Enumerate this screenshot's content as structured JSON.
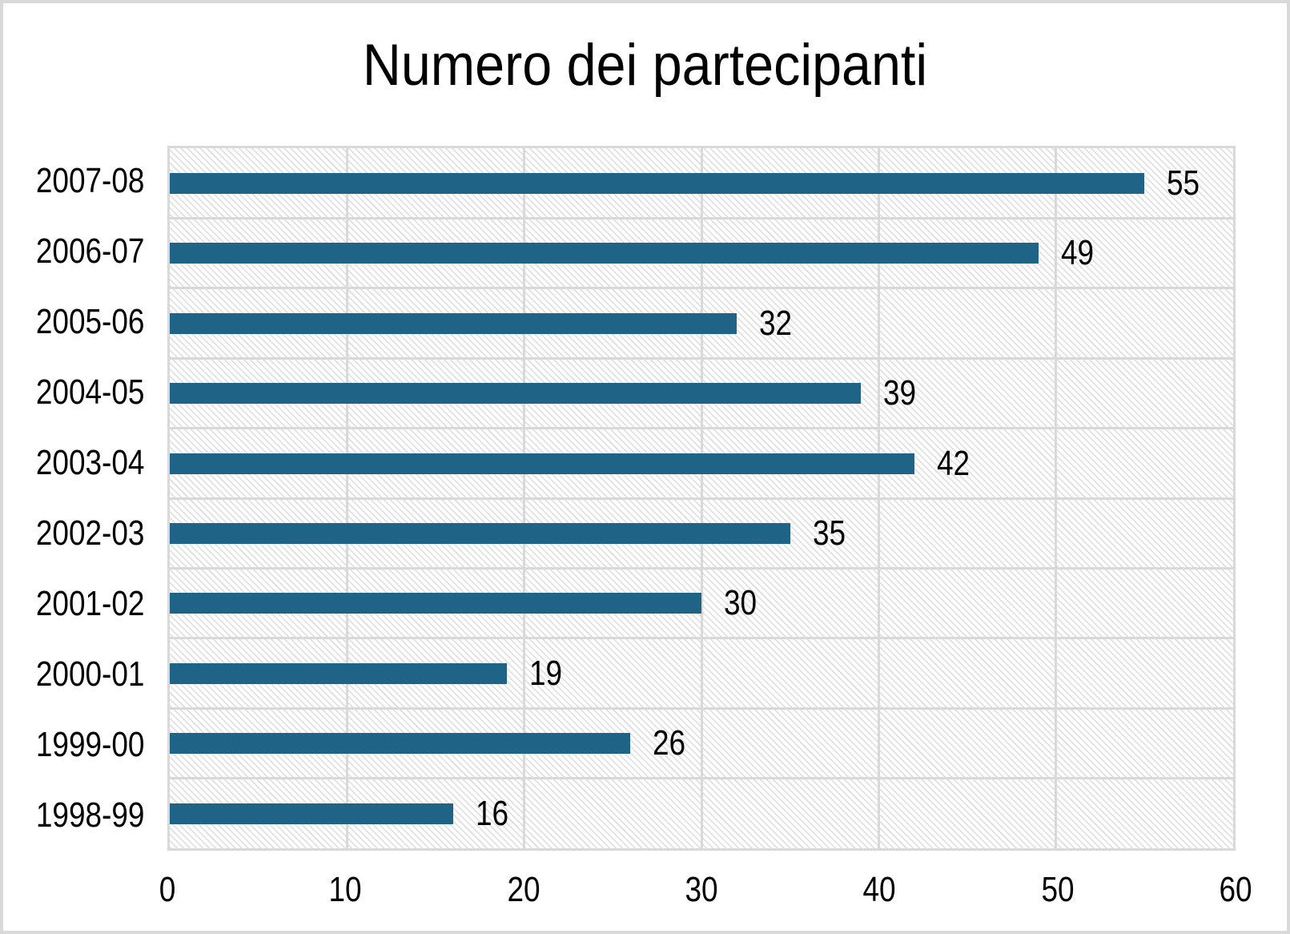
{
  "chart_data": {
    "type": "bar",
    "orientation": "horizontal",
    "title": "Numero dei partecipanti",
    "categories": [
      "2007-08",
      "2006-07",
      "2005-06",
      "2004-05",
      "2003-04",
      "2002-03",
      "2001-02",
      "2000-01",
      "1999-00",
      "1998-99"
    ],
    "values": [
      55,
      49,
      32,
      39,
      42,
      35,
      30,
      19,
      26,
      16
    ],
    "xlabel": "",
    "ylabel": "",
    "xlim": [
      0,
      60
    ],
    "x_ticks": [
      0,
      10,
      20,
      30,
      40,
      50,
      60
    ],
    "grid": true,
    "legend": false,
    "data_labels": true,
    "plot_area_fill": "light-downward-diagonal-hatch"
  },
  "colors": {
    "bar": "#1F6387",
    "gridline": "#D9D9D9",
    "plot_border": "#D9D9D9",
    "frame_border": "#D9D9D9",
    "hatch": "#E1E1E1",
    "text": "#000000",
    "background": "#FFFFFF"
  }
}
